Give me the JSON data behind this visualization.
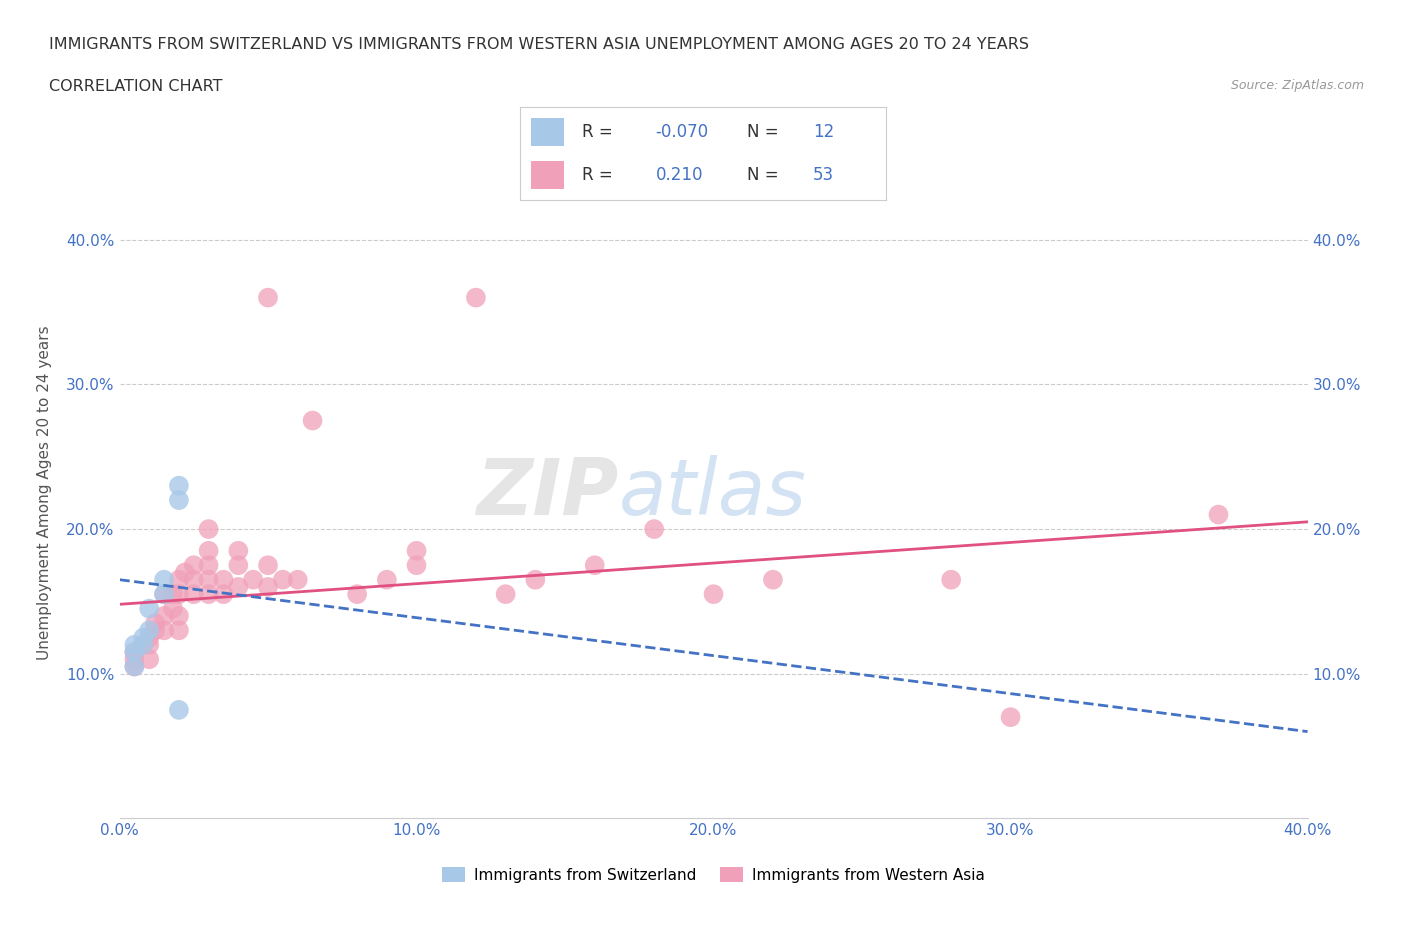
{
  "title_line1": "IMMIGRANTS FROM SWITZERLAND VS IMMIGRANTS FROM WESTERN ASIA UNEMPLOYMENT AMONG AGES 20 TO 24 YEARS",
  "title_line2": "CORRELATION CHART",
  "source_text": "Source: ZipAtlas.com",
  "ylabel": "Unemployment Among Ages 20 to 24 years",
  "xlim": [
    0.0,
    0.4
  ],
  "ylim": [
    0.0,
    0.45
  ],
  "grid_color": "#cccccc",
  "background_color": "#ffffff",
  "legend_R1": "-0.070",
  "legend_N1": "12",
  "legend_R2": "0.210",
  "legend_N2": "53",
  "color_switzerland": "#a8c8e8",
  "color_western_asia": "#f0a0b8",
  "trendline_switzerland_color": "#4472c4",
  "trendline_western_asia_color": "#e05080",
  "trendline_sw_x0": 0.0,
  "trendline_sw_y0": 0.165,
  "trendline_sw_x1": 0.4,
  "trendline_sw_y1": 0.06,
  "trendline_wa_x0": 0.0,
  "trendline_wa_y0": 0.148,
  "trendline_wa_x1": 0.4,
  "trendline_wa_y1": 0.205,
  "scatter_switzerland": [
    [
      0.005,
      0.105
    ],
    [
      0.005,
      0.115
    ],
    [
      0.005,
      0.12
    ],
    [
      0.008,
      0.12
    ],
    [
      0.008,
      0.125
    ],
    [
      0.01,
      0.13
    ],
    [
      0.01,
      0.145
    ],
    [
      0.015,
      0.155
    ],
    [
      0.015,
      0.165
    ],
    [
      0.02,
      0.22
    ],
    [
      0.02,
      0.23
    ],
    [
      0.02,
      0.075
    ]
  ],
  "scatter_western_asia": [
    [
      0.005,
      0.105
    ],
    [
      0.005,
      0.11
    ],
    [
      0.005,
      0.115
    ],
    [
      0.008,
      0.12
    ],
    [
      0.01,
      0.11
    ],
    [
      0.01,
      0.12
    ],
    [
      0.01,
      0.125
    ],
    [
      0.012,
      0.13
    ],
    [
      0.012,
      0.135
    ],
    [
      0.015,
      0.13
    ],
    [
      0.015,
      0.14
    ],
    [
      0.015,
      0.155
    ],
    [
      0.018,
      0.145
    ],
    [
      0.018,
      0.155
    ],
    [
      0.02,
      0.13
    ],
    [
      0.02,
      0.14
    ],
    [
      0.02,
      0.155
    ],
    [
      0.02,
      0.165
    ],
    [
      0.022,
      0.17
    ],
    [
      0.025,
      0.155
    ],
    [
      0.025,
      0.165
    ],
    [
      0.025,
      0.175
    ],
    [
      0.03,
      0.155
    ],
    [
      0.03,
      0.165
    ],
    [
      0.03,
      0.175
    ],
    [
      0.03,
      0.185
    ],
    [
      0.03,
      0.2
    ],
    [
      0.035,
      0.155
    ],
    [
      0.035,
      0.165
    ],
    [
      0.04,
      0.16
    ],
    [
      0.04,
      0.175
    ],
    [
      0.04,
      0.185
    ],
    [
      0.045,
      0.165
    ],
    [
      0.05,
      0.16
    ],
    [
      0.05,
      0.175
    ],
    [
      0.05,
      0.36
    ],
    [
      0.055,
      0.165
    ],
    [
      0.06,
      0.165
    ],
    [
      0.065,
      0.275
    ],
    [
      0.08,
      0.155
    ],
    [
      0.09,
      0.165
    ],
    [
      0.1,
      0.175
    ],
    [
      0.1,
      0.185
    ],
    [
      0.12,
      0.36
    ],
    [
      0.13,
      0.155
    ],
    [
      0.14,
      0.165
    ],
    [
      0.16,
      0.175
    ],
    [
      0.18,
      0.2
    ],
    [
      0.2,
      0.155
    ],
    [
      0.22,
      0.165
    ],
    [
      0.28,
      0.165
    ],
    [
      0.3,
      0.07
    ],
    [
      0.37,
      0.21
    ]
  ]
}
